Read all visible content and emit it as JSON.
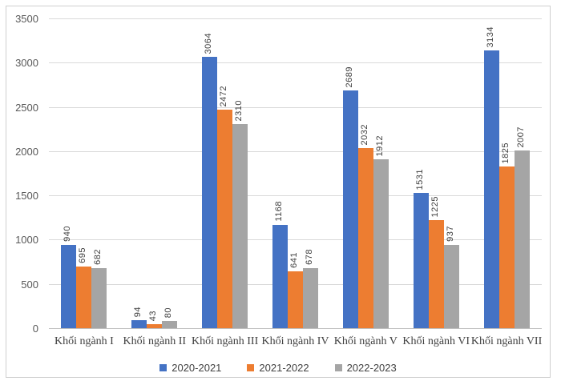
{
  "chart_data": {
    "type": "bar",
    "title": "",
    "categories": [
      "Khối ngành I",
      "Khối ngành II",
      "Khối ngành III",
      "Khối ngành IV",
      "Khối ngành V",
      "Khối ngành VI",
      "Khối ngành VII"
    ],
    "series": [
      {
        "name": "2020-2021",
        "color": "#4472C4",
        "values": [
          940,
          94,
          3064,
          1168,
          2689,
          1531,
          3134
        ]
      },
      {
        "name": "2021-2022",
        "color": "#ED7D31",
        "values": [
          695,
          43,
          2472,
          641,
          2032,
          1225,
          1825
        ]
      },
      {
        "name": "2022-2023",
        "color": "#A5A5A5",
        "values": [
          682,
          80,
          2310,
          678,
          1912,
          937,
          2007
        ]
      }
    ],
    "xlabel": "",
    "ylabel": "",
    "ylim": [
      0,
      3500
    ],
    "ytick_step": 500,
    "grid": true,
    "legend_position": "bottom",
    "value_labels": "rotated-90",
    "style": {
      "gridline_color": "#d9d9d9",
      "axis_line_color": "#bfbfbf",
      "frame_border_color": "#cfcfcf",
      "tick_label_color": "#595959",
      "value_label_color": "#404040",
      "category_label_color": "#404040",
      "legend_text_color": "#404040"
    }
  }
}
